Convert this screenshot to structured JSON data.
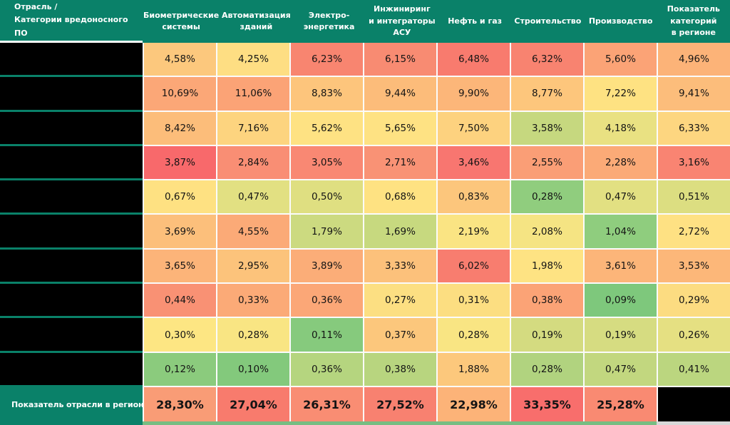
{
  "colors": {
    "header_teal": "#0A8169",
    "grid_white": "#fbfbfb",
    "redacted_black": "#000000",
    "strip_green": "#77bd82",
    "strip_gray": "#d8d8d8",
    "header_text": "#ffffff",
    "cell_text": "#141414"
  },
  "header": {
    "corner_label": "Отрасль /\nКатегории вредоносного ПО",
    "columns": [
      "Биометрические\nсистемы",
      "Автоматизация\nзданий",
      "Электро-\nэнергетика",
      "Инжиниринг\nи интеграторы\nАСУ",
      "Нефть и газ",
      "Строительство",
      "Производство",
      "Показатель\nкатегорий\nв регионе"
    ]
  },
  "rows": [
    {
      "label_redacted": true,
      "cells": [
        {
          "value": "4,58%",
          "color": "#fcc87d"
        },
        {
          "value": "4,25%",
          "color": "#fede83"
        },
        {
          "value": "6,23%",
          "color": "#f88570"
        },
        {
          "value": "6,15%",
          "color": "#f88b72"
        },
        {
          "value": "6,48%",
          "color": "#f87b6e"
        },
        {
          "value": "6,32%",
          "color": "#f88370"
        },
        {
          "value": "5,60%",
          "color": "#fba376"
        },
        {
          "value": "4,96%",
          "color": "#fcb378"
        }
      ]
    },
    {
      "label_redacted": true,
      "cells": [
        {
          "value": "10,69%",
          "color": "#fba777"
        },
        {
          "value": "11,06%",
          "color": "#fba376"
        },
        {
          "value": "8,83%",
          "color": "#fdc57c"
        },
        {
          "value": "9,44%",
          "color": "#fcbc7a"
        },
        {
          "value": "9,90%",
          "color": "#fcb679"
        },
        {
          "value": "8,77%",
          "color": "#fdc67c"
        },
        {
          "value": "7,22%",
          "color": "#fee282"
        },
        {
          "value": "9,41%",
          "color": "#fcbd7b"
        }
      ]
    },
    {
      "label_redacted": true,
      "cells": [
        {
          "value": "8,42%",
          "color": "#fcbd7a"
        },
        {
          "value": "7,16%",
          "color": "#fdd47f"
        },
        {
          "value": "5,62%",
          "color": "#fee283"
        },
        {
          "value": "5,65%",
          "color": "#fee283"
        },
        {
          "value": "7,50%",
          "color": "#fdd27f"
        },
        {
          "value": "3,58%",
          "color": "#c6d87f"
        },
        {
          "value": "4,18%",
          "color": "#e9e182"
        },
        {
          "value": "6,33%",
          "color": "#fdd680"
        }
      ]
    },
    {
      "label_redacted": true,
      "cells": [
        {
          "value": "3,87%",
          "color": "#f8696b"
        },
        {
          "value": "2,84%",
          "color": "#f98e74"
        },
        {
          "value": "3,05%",
          "color": "#f98873"
        },
        {
          "value": "2,71%",
          "color": "#f99275"
        },
        {
          "value": "3,46%",
          "color": "#f87670"
        },
        {
          "value": "2,55%",
          "color": "#fa9e76"
        },
        {
          "value": "2,28%",
          "color": "#fbaa77"
        },
        {
          "value": "3,16%",
          "color": "#f98472"
        }
      ]
    },
    {
      "label_redacted": true,
      "cells": [
        {
          "value": "0,67%",
          "color": "#fee182"
        },
        {
          "value": "0,47%",
          "color": "#e2e082"
        },
        {
          "value": "0,50%",
          "color": "#dfdf81"
        },
        {
          "value": "0,68%",
          "color": "#fee282"
        },
        {
          "value": "0,83%",
          "color": "#fcc67c"
        },
        {
          "value": "0,28%",
          "color": "#90cd7e"
        },
        {
          "value": "0,47%",
          "color": "#e2e082"
        },
        {
          "value": "0,51%",
          "color": "#dcde81"
        }
      ]
    },
    {
      "label_redacted": true,
      "cells": [
        {
          "value": "3,69%",
          "color": "#fcbf7b"
        },
        {
          "value": "4,55%",
          "color": "#fbaa77"
        },
        {
          "value": "1,79%",
          "color": "#ccda80"
        },
        {
          "value": "1,69%",
          "color": "#c7d97f"
        },
        {
          "value": "2,19%",
          "color": "#fae483"
        },
        {
          "value": "2,08%",
          "color": "#f5e483"
        },
        {
          "value": "1,04%",
          "color": "#8fcd7e"
        },
        {
          "value": "2,72%",
          "color": "#fee183"
        }
      ]
    },
    {
      "label_redacted": true,
      "cells": [
        {
          "value": "3,65%",
          "color": "#fcb479"
        },
        {
          "value": "2,95%",
          "color": "#fcc37b"
        },
        {
          "value": "3,89%",
          "color": "#fbad78"
        },
        {
          "value": "3,33%",
          "color": "#fcc17b"
        },
        {
          "value": "6,02%",
          "color": "#f87d6f"
        },
        {
          "value": "1,98%",
          "color": "#fee383"
        },
        {
          "value": "3,61%",
          "color": "#fcb579"
        },
        {
          "value": "3,53%",
          "color": "#fcb779"
        }
      ]
    },
    {
      "label_redacted": true,
      "cells": [
        {
          "value": "0,44%",
          "color": "#f99174"
        },
        {
          "value": "0,33%",
          "color": "#fbaa77"
        },
        {
          "value": "0,36%",
          "color": "#fba777"
        },
        {
          "value": "0,27%",
          "color": "#fcdf82"
        },
        {
          "value": "0,31%",
          "color": "#fcde81"
        },
        {
          "value": "0,38%",
          "color": "#fba376"
        },
        {
          "value": "0,09%",
          "color": "#7ec87c"
        },
        {
          "value": "0,29%",
          "color": "#fcdc81"
        }
      ]
    },
    {
      "label_redacted": true,
      "cells": [
        {
          "value": "0,30%",
          "color": "#fde683"
        },
        {
          "value": "0,28%",
          "color": "#f9e583"
        },
        {
          "value": "0,11%",
          "color": "#86ca7d"
        },
        {
          "value": "0,37%",
          "color": "#fcc77c"
        },
        {
          "value": "0,28%",
          "color": "#f9e583"
        },
        {
          "value": "0,19%",
          "color": "#d4db80"
        },
        {
          "value": "0,19%",
          "color": "#d6dc81"
        },
        {
          "value": "0,26%",
          "color": "#e5e082"
        }
      ]
    },
    {
      "label_redacted": true,
      "cells": [
        {
          "value": "0,12%",
          "color": "#8bcb7d"
        },
        {
          "value": "0,10%",
          "color": "#83c97c"
        },
        {
          "value": "0,36%",
          "color": "#b5d57f"
        },
        {
          "value": "0,38%",
          "color": "#b8d57f"
        },
        {
          "value": "1,88%",
          "color": "#fcc87c"
        },
        {
          "value": "0,28%",
          "color": "#b1d37f"
        },
        {
          "value": "0,47%",
          "color": "#c2d77f"
        },
        {
          "value": "0,41%",
          "color": "#bbd67f"
        }
      ]
    }
  ],
  "footer": {
    "label": "Показатель отрасли в регионе",
    "cells": [
      {
        "value": "28,30%",
        "color": "#f99c76"
      },
      {
        "value": "27,04%",
        "color": "#f87b6d"
      },
      {
        "value": "26,31%",
        "color": "#f98d73"
      },
      {
        "value": "27,52%",
        "color": "#f88170"
      },
      {
        "value": "22,98%",
        "color": "#fcb378"
      },
      {
        "value": "33,35%",
        "color": "#f86e6c"
      },
      {
        "value": "25,28%",
        "color": "#f98a72"
      },
      {
        "value": "",
        "color": "#000000",
        "redacted": true
      }
    ]
  },
  "chart_data": {
    "type": "heatmap",
    "title": "Отрасль / Категории вредоносного ПО",
    "columns": [
      "Биометрические системы",
      "Автоматизация зданий",
      "Электро-энергетика",
      "Инжиниринг и интеграторы АСУ",
      "Нефть и газ",
      "Строительство",
      "Производство",
      "Показатель категорий в регионе"
    ],
    "row_labels": [
      "[redacted]",
      "[redacted]",
      "[redacted]",
      "[redacted]",
      "[redacted]",
      "[redacted]",
      "[redacted]",
      "[redacted]",
      "[redacted]",
      "[redacted]"
    ],
    "values": [
      [
        4.58,
        4.25,
        6.23,
        6.15,
        6.48,
        6.32,
        5.6,
        4.96
      ],
      [
        10.69,
        11.06,
        8.83,
        9.44,
        9.9,
        8.77,
        7.22,
        9.41
      ],
      [
        8.42,
        7.16,
        5.62,
        5.65,
        7.5,
        3.58,
        4.18,
        6.33
      ],
      [
        3.87,
        2.84,
        3.05,
        2.71,
        3.46,
        2.55,
        2.28,
        3.16
      ],
      [
        0.67,
        0.47,
        0.5,
        0.68,
        0.83,
        0.28,
        0.47,
        0.51
      ],
      [
        3.69,
        4.55,
        1.79,
        1.69,
        2.19,
        2.08,
        1.04,
        2.72
      ],
      [
        3.65,
        2.95,
        3.89,
        3.33,
        6.02,
        1.98,
        3.61,
        3.53
      ],
      [
        0.44,
        0.33,
        0.36,
        0.27,
        0.31,
        0.38,
        0.09,
        0.29
      ],
      [
        0.3,
        0.28,
        0.11,
        0.37,
        0.28,
        0.19,
        0.19,
        0.26
      ],
      [
        0.12,
        0.1,
        0.36,
        0.38,
        1.88,
        0.28,
        0.47,
        0.41
      ]
    ],
    "footer_label": "Показатель отрасли в регионе",
    "footer_values": [
      28.3,
      27.04,
      26.31,
      27.52,
      22.98,
      33.35,
      25.28,
      null
    ],
    "units": "%",
    "decimal_separator": ",",
    "color_scale": "green (low) -> yellow -> orange -> red (high)"
  }
}
